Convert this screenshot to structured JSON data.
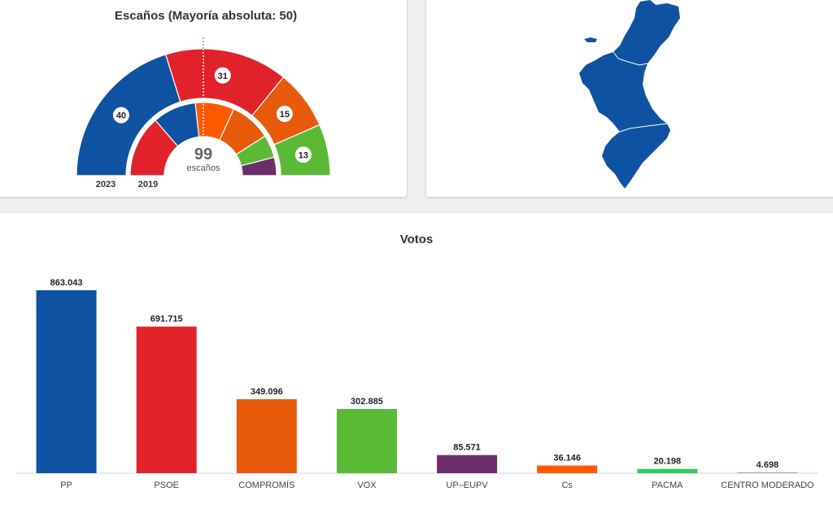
{
  "seats": {
    "title": "Escaños (Mayoría absoluta: 50)",
    "total": "99",
    "total_label": "escaños",
    "year_outer": "2023",
    "year_inner": "2019"
  },
  "chart_data": [
    {
      "type": "pie",
      "variant": "parliament-semicircle",
      "title": "Escaños (Mayoría absoluta: 50)",
      "series": [
        {
          "name": "2023",
          "categories": [
            "PP",
            "PSOE",
            "COMPROMÍS",
            "VOX"
          ],
          "values": [
            40,
            31,
            15,
            13
          ],
          "colors": [
            "#0f52a1",
            "#e1222a",
            "#e85a0c",
            "#5aba35"
          ],
          "data_labels": [
            "40",
            "31",
            "15",
            "13"
          ]
        },
        {
          "name": "2019",
          "categories": [
            "PSOE",
            "PP",
            "COMPROMÍS",
            "Cs",
            "VOX",
            "UP-EUPV"
          ],
          "values": [
            27,
            19,
            17,
            18,
            10,
            8
          ],
          "colors": [
            "#e1222a",
            "#0f52a1",
            "#ff5a00",
            "#e85a0c",
            "#5aba35",
            "#6b2e6b"
          ]
        }
      ]
    },
    {
      "type": "bar",
      "title": "Votos",
      "categories": [
        "PP",
        "PSOE",
        "COMPROMÍS",
        "VOX",
        "UP–EUPV",
        "Cs",
        "PACMA",
        "CENTRO MODERADO"
      ],
      "values": [
        863043,
        691715,
        349096,
        302885,
        85571,
        36146,
        20198,
        4698
      ],
      "data_labels": [
        "863.043",
        "691.715",
        "349.096",
        "302.885",
        "85.571",
        "36.146",
        "20.198",
        "4.698"
      ],
      "colors": [
        "#0f52a1",
        "#e1222a",
        "#e85a0c",
        "#5aba35",
        "#6b2e6b",
        "#ff5a00",
        "#2ecc5a",
        "#aaaaaa"
      ],
      "ylim": [
        0,
        863043
      ],
      "grid": false
    }
  ],
  "map": {
    "region_color": "#0f52a1"
  }
}
